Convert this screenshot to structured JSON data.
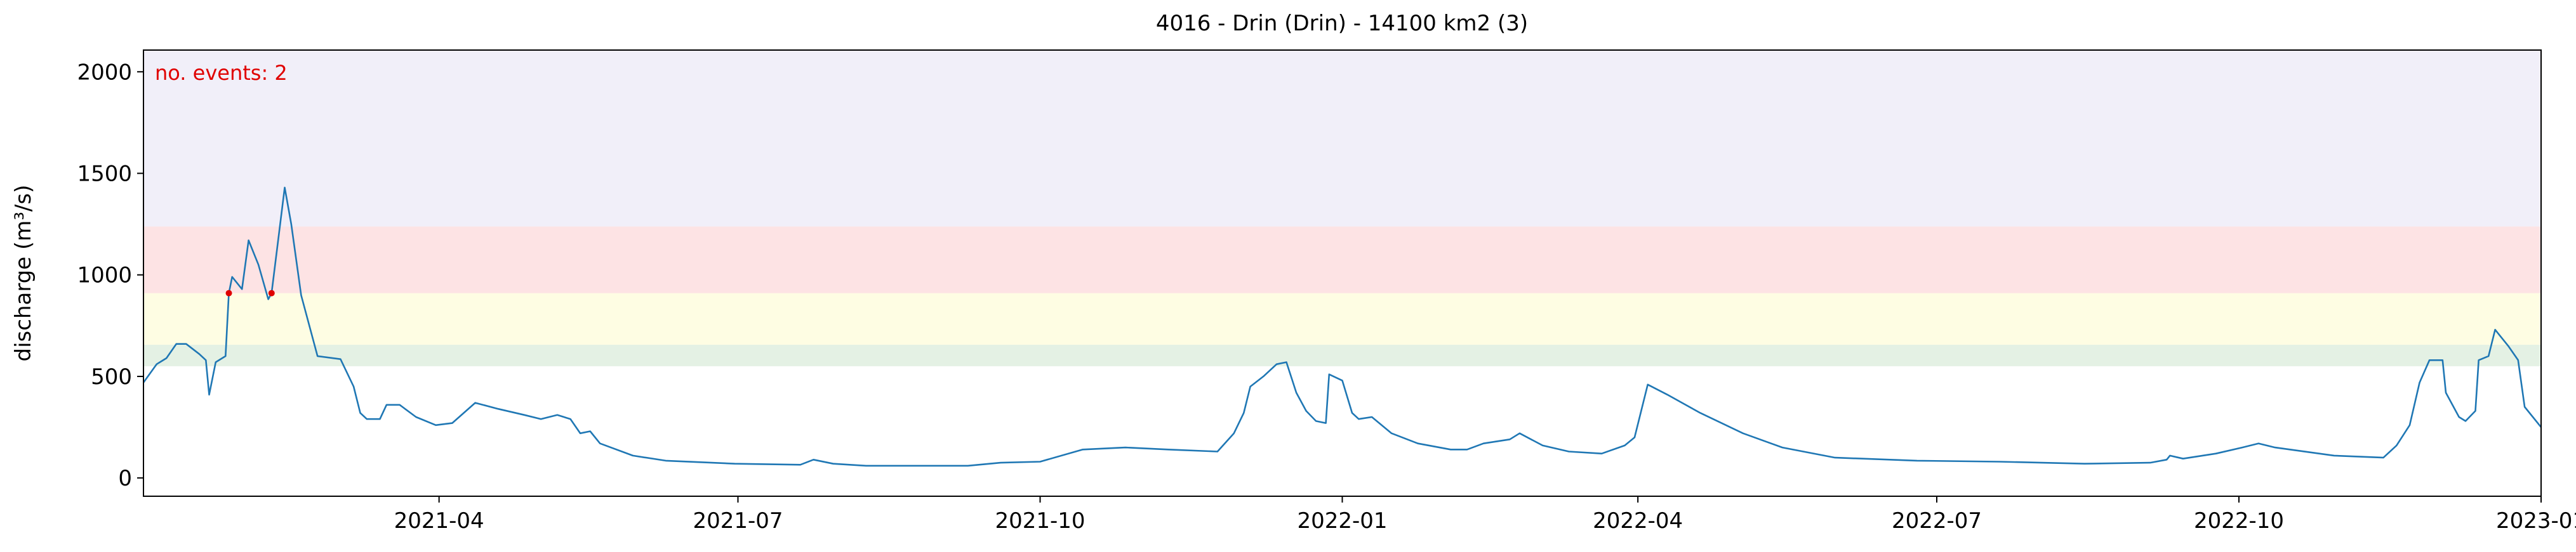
{
  "chart_data": {
    "type": "line",
    "title": "4016 - Drin (Drin) - 14100 km2 (3)",
    "y_label": "discharge (m³/s)",
    "annotation": "no. events: 2",
    "annotation_color": "#e00000",
    "xlim": [
      "2021-01-01",
      "2023-01-01"
    ],
    "ylim": [
      -90,
      2107
    ],
    "yticks": [
      0,
      500,
      1000,
      1500,
      2000
    ],
    "xticks": [
      {
        "value": "2021-04-01",
        "label": "2021-04"
      },
      {
        "value": "2021-07-01",
        "label": "2021-07"
      },
      {
        "value": "2021-10-01",
        "label": "2021-10"
      },
      {
        "value": "2022-01-01",
        "label": "2022-01"
      },
      {
        "value": "2022-04-01",
        "label": "2022-04"
      },
      {
        "value": "2022-07-01",
        "label": "2022-07"
      },
      {
        "value": "2022-10-01",
        "label": "2022-10"
      },
      {
        "value": "2023-01-01",
        "label": "2023-01"
      }
    ],
    "bands": [
      {
        "from": 550,
        "to": 656,
        "color": "#e4f1e4"
      },
      {
        "from": 656,
        "to": 910,
        "color": "#fefde3"
      },
      {
        "from": 910,
        "to": 1238,
        "color": "#fde3e4"
      },
      {
        "from": 1238,
        "to": 2107,
        "color": "#f1eff9"
      }
    ],
    "x": [
      "2021-01-01",
      "2021-01-05",
      "2021-01-08",
      "2021-01-11",
      "2021-01-14",
      "2021-01-18",
      "2021-01-20",
      "2021-01-21",
      "2021-01-23",
      "2021-01-26",
      "2021-01-27",
      "2021-01-28",
      "2021-01-31",
      "2021-02-02",
      "2021-02-05",
      "2021-02-08",
      "2021-02-09",
      "2021-02-13",
      "2021-02-15",
      "2021-02-18",
      "2021-02-23",
      "2021-03-02",
      "2021-03-06",
      "2021-03-08",
      "2021-03-10",
      "2021-03-14",
      "2021-03-16",
      "2021-03-20",
      "2021-03-25",
      "2021-03-31",
      "2021-04-05",
      "2021-04-12",
      "2021-04-19",
      "2021-04-27",
      "2021-05-02",
      "2021-05-07",
      "2021-05-11",
      "2021-05-14",
      "2021-05-17",
      "2021-05-20",
      "2021-05-30",
      "2021-06-09",
      "2021-06-30",
      "2021-07-20",
      "2021-07-24",
      "2021-07-30",
      "2021-08-09",
      "2021-09-09",
      "2021-09-19",
      "2021-10-01",
      "2021-10-14",
      "2021-10-27",
      "2021-11-09",
      "2021-11-24",
      "2021-11-29",
      "2021-12-02",
      "2021-12-04",
      "2021-12-08",
      "2021-12-12",
      "2021-12-15",
      "2021-12-18",
      "2021-12-21",
      "2021-12-24",
      "2021-12-27",
      "2021-12-28",
      "2022-01-01",
      "2022-01-04",
      "2022-01-06",
      "2022-01-10",
      "2022-01-16",
      "2022-01-24",
      "2022-02-03",
      "2022-02-08",
      "2022-02-13",
      "2022-02-21",
      "2022-02-24",
      "2022-03-03",
      "2022-03-11",
      "2022-03-21",
      "2022-03-28",
      "2022-03-31",
      "2022-04-04",
      "2022-04-10",
      "2022-04-20",
      "2022-05-03",
      "2022-05-15",
      "2022-05-31",
      "2022-06-25",
      "2022-07-20",
      "2022-08-15",
      "2022-09-04",
      "2022-09-09",
      "2022-09-10",
      "2022-09-14",
      "2022-09-24",
      "2022-10-02",
      "2022-10-07",
      "2022-10-12",
      "2022-10-30",
      "2022-11-14",
      "2022-11-18",
      "2022-11-22",
      "2022-11-25",
      "2022-11-28",
      "2022-12-02",
      "2022-12-03",
      "2022-12-07",
      "2022-12-09",
      "2022-12-12",
      "2022-12-13",
      "2022-12-16",
      "2022-12-18",
      "2022-12-22",
      "2022-12-25",
      "2022-12-27",
      "2023-01-01"
    ],
    "series": [
      {
        "color": "#1f77b4",
        "values": [
          470,
          560,
          590,
          660,
          660,
          610,
          580,
          410,
          570,
          600,
          910,
          990,
          930,
          1170,
          1050,
          880,
          910,
          1430,
          1250,
          900,
          600,
          585,
          450,
          320,
          290,
          290,
          360,
          360,
          300,
          260,
          270,
          370,
          340,
          310,
          290,
          310,
          290,
          220,
          230,
          170,
          110,
          85,
          70,
          65,
          90,
          70,
          60,
          60,
          75,
          80,
          140,
          150,
          140,
          130,
          220,
          320,
          450,
          500,
          560,
          570,
          420,
          330,
          280,
          270,
          510,
          480,
          320,
          290,
          300,
          220,
          170,
          140,
          140,
          170,
          190,
          220,
          160,
          130,
          120,
          160,
          200,
          460,
          410,
          320,
          220,
          150,
          100,
          85,
          80,
          70,
          75,
          90,
          110,
          95,
          120,
          150,
          170,
          150,
          110,
          100,
          160,
          260,
          470,
          580,
          580,
          420,
          300,
          280,
          330,
          580,
          600,
          730,
          650,
          580,
          350,
          250
        ]
      }
    ],
    "events": {
      "color": "#e00000",
      "x": [
        "2021-01-27",
        "2021-02-09"
      ],
      "values": [
        910,
        910
      ]
    }
  }
}
